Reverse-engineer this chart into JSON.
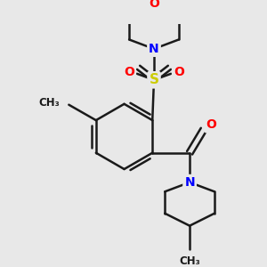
{
  "bg_color": "#e8e8e8",
  "bond_color": "#1a1a1a",
  "atom_colors": {
    "O": "#ff0000",
    "N": "#0000ff",
    "S": "#cccc00",
    "C": "#1a1a1a"
  },
  "line_width": 1.8,
  "font_size": 10
}
